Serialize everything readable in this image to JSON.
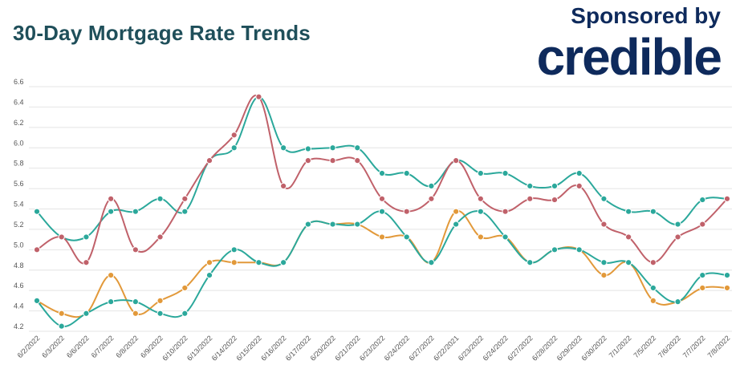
{
  "header": {
    "title": "30-Day Mortgage Rate Trends",
    "sponsor_text": "Sponsored by",
    "sponsor_logo": "credible"
  },
  "colors": {
    "title": "#1f4f5a",
    "sponsor": "#0e2a5c",
    "grid": "#e4e4e4",
    "tick_label": "#555555"
  },
  "chart_data": {
    "type": "line",
    "title": "30-Day Mortgage Rate Trends",
    "xlabel": "",
    "ylabel": "",
    "grid": true,
    "legend": "none",
    "ylim": [
      4.2,
      6.6
    ],
    "yticks": [
      "4.2",
      "4.4",
      "4.6",
      "4.8",
      "5.0",
      "5.2",
      "5.4",
      "5.6",
      "5.8",
      "6.0",
      "6.2",
      "6.4",
      "6.6"
    ],
    "categories": [
      "6/2/2022",
      "6/3/2022",
      "6/6/2022",
      "6/7/2022",
      "6/8/2022",
      "6/9/2022",
      "6/10/2022",
      "6/13/2022",
      "6/14/2022",
      "6/15/2022",
      "6/16/2022",
      "6/17/2022",
      "6/20/2022",
      "6/21/2022",
      "6/23/2022",
      "6/24/2022",
      "6/27/2022",
      "6/22/2021",
      "6/23/2022",
      "6/24/2022",
      "6/27/2022",
      "6/28/2022",
      "6/29/2022",
      "6/30/2022",
      "7/1/2022",
      "7/5/2022",
      "7/6/2022",
      "7/7/2022",
      "7/8/2022"
    ],
    "series": [
      {
        "color": "#2ba89b",
        "values": [
          5.375,
          5.125,
          5.125,
          5.375,
          5.375,
          5.5,
          5.375,
          5.875,
          6.0,
          6.5,
          6.0,
          5.99,
          6.0,
          6.0,
          5.75,
          5.75,
          5.625,
          5.875,
          5.75,
          5.75,
          5.625,
          5.625,
          5.75,
          5.5,
          5.375,
          5.375,
          5.25,
          5.49,
          5.5
        ]
      },
      {
        "color": "#c0616a",
        "values": [
          5.0,
          5.125,
          4.875,
          5.5,
          5.0,
          5.125,
          5.5,
          5.875,
          6.125,
          6.5,
          5.625,
          5.875,
          5.875,
          5.875,
          5.5,
          5.375,
          5.5,
          5.875,
          5.5,
          5.375,
          5.5,
          5.49,
          5.625,
          5.25,
          5.125,
          4.875,
          5.125,
          5.25,
          5.5
        ]
      },
      {
        "color": "#e2993a",
        "values": [
          4.5,
          4.375,
          4.375,
          4.75,
          4.375,
          4.5,
          4.625,
          4.875,
          4.875,
          4.875,
          4.875,
          5.25,
          5.25,
          5.25,
          5.125,
          5.125,
          4.875,
          5.375,
          5.125,
          5.125,
          4.875,
          5.0,
          5.0,
          4.75,
          4.875,
          4.5,
          4.49,
          4.625,
          4.625
        ]
      },
      {
        "color": "#2ba89b",
        "values": [
          4.5,
          4.25,
          4.375,
          4.49,
          4.49,
          4.375,
          4.375,
          4.75,
          5.0,
          4.875,
          4.875,
          5.25,
          5.25,
          5.25,
          5.375,
          5.125,
          4.875,
          5.25,
          5.375,
          5.125,
          4.875,
          5.0,
          5.0,
          4.875,
          4.875,
          4.625,
          4.49,
          4.75,
          4.75
        ]
      }
    ]
  }
}
